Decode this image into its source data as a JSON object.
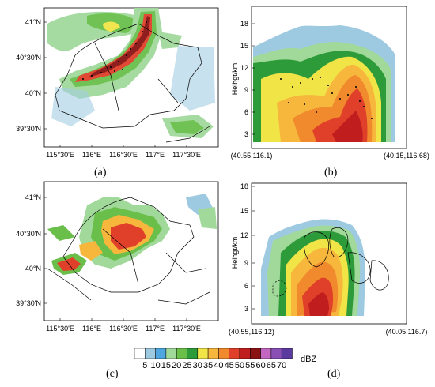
{
  "colors": {
    "bins": [
      "#ffffff",
      "#9ecae1",
      "#4da6e0",
      "#a1d99b",
      "#6abf4b",
      "#2e9b3a",
      "#f1e447",
      "#f6b73c",
      "#f08a2c",
      "#e0402a",
      "#c01e1e",
      "#8a1212",
      "#c266c2",
      "#8a4fb5",
      "#5a3a9e"
    ],
    "map_line": "#000000"
  },
  "panels": {
    "a": {
      "letter": "(a)",
      "lat_ticks": [
        "41°N",
        "40°30'N",
        "40°N",
        "39°30'N"
      ],
      "lon_ticks": [
        "115°30'E",
        "116°E",
        "116°30'E",
        "117°E",
        "117°30'E"
      ]
    },
    "b": {
      "letter": "(b)",
      "ylabel": "Heihgt/km",
      "y_ticks": [
        "3",
        "6",
        "9",
        "12",
        "15",
        "18"
      ],
      "x_left": "(40.55,116.1)",
      "x_right": "(40.15,116.68)"
    },
    "c": {
      "letter": "(c)",
      "lat_ticks": [
        "41°N",
        "40°30'N",
        "40°N",
        "39°30'N"
      ],
      "lon_ticks": [
        "115°30'E",
        "116°E",
        "116°30'E",
        "117°E",
        "117°30'E"
      ]
    },
    "d": {
      "letter": "(d)",
      "ylabel": "Heihgt/km",
      "y_ticks": [
        "3",
        "6",
        "9",
        "12",
        "15",
        "18"
      ],
      "x_left": "(40.55,116.12)",
      "x_right": "(40.05,116.7)"
    }
  },
  "colorbar": {
    "ticks": [
      "5",
      "10",
      "15",
      "20",
      "25",
      "30",
      "35",
      "40",
      "45",
      "50",
      "55",
      "60",
      "65",
      "70"
    ],
    "unit": "dBZ"
  },
  "chart_data": [
    {
      "type": "heatmap",
      "panel": "a",
      "description_units": "dBZ",
      "lat_ticks": [
        "41°N",
        "40°30'N",
        "40°N",
        "39°30'N"
      ],
      "lon_ticks": [
        "115°30'E",
        "116°E",
        "116°30'E",
        "117°E",
        "117°30'E"
      ]
    },
    {
      "type": "heatmap",
      "panel": "b",
      "ylabel": "Heihgt/km",
      "y_ticks": [
        3,
        6,
        9,
        12,
        15,
        18
      ],
      "ylim": [
        0,
        19
      ],
      "x_endpoints": [
        "(40.55,116.1)",
        "(40.15,116.68)"
      ]
    },
    {
      "type": "heatmap",
      "panel": "c",
      "lat_ticks": [
        "41°N",
        "40°30'N",
        "40°N",
        "39°30'N"
      ],
      "lon_ticks": [
        "115°30'E",
        "116°E",
        "116°30'E",
        "117°E",
        "117°30'E"
      ]
    },
    {
      "type": "heatmap",
      "panel": "d",
      "ylabel": "Heihgt/km",
      "y_ticks": [
        3,
        6,
        9,
        12,
        15,
        18
      ],
      "ylim": [
        0,
        19
      ],
      "x_endpoints": [
        "(40.55,116.12)",
        "(40.05,116.7)"
      ]
    },
    {
      "type": "colorbar",
      "bins": [
        5,
        10,
        15,
        20,
        25,
        30,
        35,
        40,
        45,
        50,
        55,
        60,
        65,
        70
      ],
      "unit": "dBZ"
    }
  ]
}
